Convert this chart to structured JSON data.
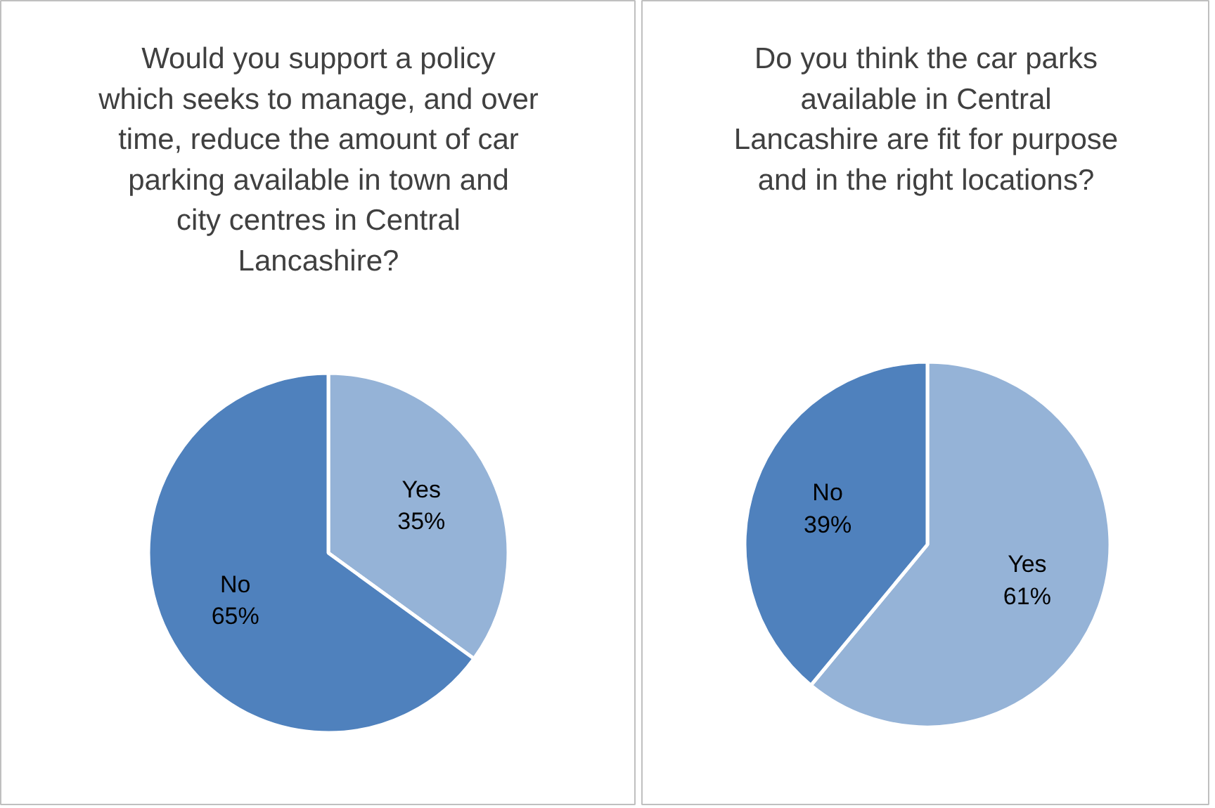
{
  "chart_data": [
    {
      "type": "pie",
      "title": "Would you support a policy which seeks to manage, and over time, reduce the amount of car parking available in town and city centres in Central Lancashire?",
      "categories": [
        "Yes",
        "No"
      ],
      "values": [
        35,
        65
      ],
      "value_labels": [
        "35%",
        "65%"
      ],
      "colors": [
        "#95b3d7",
        "#4f81bd"
      ],
      "legend": false
    },
    {
      "type": "pie",
      "title": "Do you think the car parks available in Central Lancashire are fit for purpose and in the right locations?",
      "categories": [
        "Yes",
        "No"
      ],
      "values": [
        61,
        39
      ],
      "value_labels": [
        "61%",
        "39%"
      ],
      "colors": [
        "#95b3d7",
        "#4f81bd"
      ],
      "legend": false
    }
  ]
}
